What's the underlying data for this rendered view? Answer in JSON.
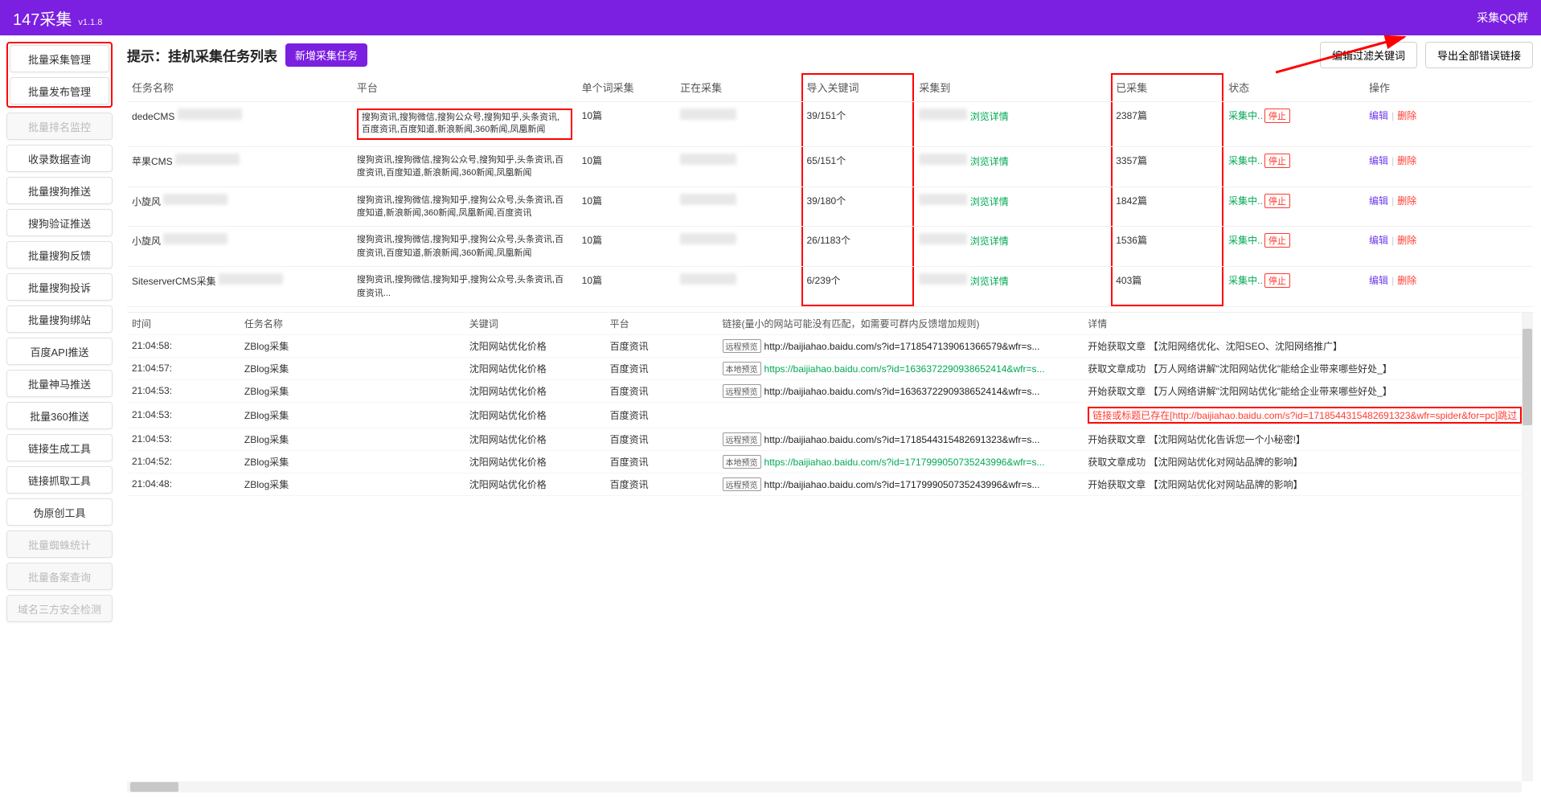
{
  "header": {
    "title": "147采集",
    "version": "v1.1.8",
    "right_link": "采集QQ群"
  },
  "sidebar": {
    "group_highlight": [
      "批量采集管理",
      "批量发布管理"
    ],
    "items": [
      {
        "label": "批量排名监控",
        "disabled": true
      },
      {
        "label": "收录数据查询",
        "disabled": false
      },
      {
        "label": "批量搜狗推送",
        "disabled": false
      },
      {
        "label": "搜狗验证推送",
        "disabled": false
      },
      {
        "label": "批量搜狗反馈",
        "disabled": false
      },
      {
        "label": "批量搜狗投诉",
        "disabled": false
      },
      {
        "label": "批量搜狗绑站",
        "disabled": false
      },
      {
        "label": "百度API推送",
        "disabled": false
      },
      {
        "label": "批量神马推送",
        "disabled": false
      },
      {
        "label": "批量360推送",
        "disabled": false
      },
      {
        "label": "链接生成工具",
        "disabled": false
      },
      {
        "label": "链接抓取工具",
        "disabled": false
      },
      {
        "label": "伪原创工具",
        "disabled": false
      },
      {
        "label": "批量蜘蛛统计",
        "disabled": true
      },
      {
        "label": "批量备案查询",
        "disabled": true
      },
      {
        "label": "域名三方安全检测",
        "disabled": true
      }
    ]
  },
  "titlebar": {
    "hint": "提示：挂机采集任务列表",
    "new_btn": "新增采集任务",
    "edit_filter": "编辑过滤关键词",
    "export_err": "导出全部错误链接"
  },
  "columns": {
    "task_name": "任务名称",
    "platform": "平台",
    "per_word": "单个词采集",
    "collecting": "正在采集",
    "imported_kw": "导入关键词",
    "collected_to": "采集到",
    "collected_count": "已采集",
    "status": "状态",
    "actions": "操作"
  },
  "status_labels": {
    "collecting": "采集中..",
    "stop": "停止"
  },
  "action_labels": {
    "edit": "编辑",
    "delete": "删除"
  },
  "detail_link": "浏览详情",
  "rows": [
    {
      "task": "dedeCMS",
      "platform": "搜狗资讯,搜狗微信,搜狗公众号,搜狗知乎,头条资讯,百度资讯,百度知道,新浪新闻,360新闻,凤凰新闻",
      "platform_hl": true,
      "per_word": "10篇",
      "imported_kw": "39/151个",
      "collected_count": "2387篇"
    },
    {
      "task": "苹果CMS",
      "platform": "搜狗资讯,搜狗微信,搜狗公众号,搜狗知乎,头条资讯,百度资讯,百度知道,新浪新闻,360新闻,凤凰新闻",
      "per_word": "10篇",
      "imported_kw": "65/151个",
      "collected_count": "3357篇"
    },
    {
      "task": "小旋风",
      "platform": "搜狗资讯,搜狗微信,搜狗知乎,搜狗公众号,头条资讯,百度知道,新浪新闻,360新闻,凤凰新闻,百度资讯",
      "per_word": "10篇",
      "imported_kw": "39/180个",
      "collected_count": "1842篇"
    },
    {
      "task": "小旋风",
      "platform": "搜狗资讯,搜狗微信,搜狗知乎,搜狗公众号,头条资讯,百度资讯,百度知道,新浪新闻,360新闻,凤凰新闻",
      "per_word": "10篇",
      "imported_kw": "26/1183个",
      "collected_count": "1536篇"
    },
    {
      "task": "SiteserverCMS采集",
      "platform": "搜狗资讯,搜狗微信,搜狗知乎,搜狗公众号,头条资讯,百度资讯...",
      "per_word": "10篇",
      "imported_kw": "6/239个",
      "collected_count": "403篇"
    }
  ],
  "log_columns": {
    "time": "时间",
    "task": "任务名称",
    "keyword": "关键词",
    "platform": "平台",
    "link": "链接(量小的网站可能没有匹配，如需要可群内反馈增加规则)",
    "detail": "详情"
  },
  "preview_tags": {
    "remote": "远程预览",
    "local": "本地预览"
  },
  "log_rows": [
    {
      "time": "21:04:58:",
      "task": "ZBlog采集",
      "keyword": "沈阳网站优化价格",
      "platform": "百度资讯",
      "tag": "remote",
      "url": "http://baijiahao.baidu.com/s?id=1718547139061366579&wfr=s...",
      "url_color": "black",
      "detail": "开始获取文章 【沈阳网络优化、沈阳SEO、沈阳网络推广】"
    },
    {
      "time": "21:04:57:",
      "task": "ZBlog采集",
      "keyword": "沈阳网站优化价格",
      "platform": "百度资讯",
      "tag": "local",
      "url": "https://baijiahao.baidu.com/s?id=1636372290938652414&wfr=s...",
      "url_color": "green",
      "detail": "获取文章成功 【万人网络讲解\"沈阳网站优化\"能给企业带来哪些好处_】"
    },
    {
      "time": "21:04:53:",
      "task": "ZBlog采集",
      "keyword": "沈阳网站优化价格",
      "platform": "百度资讯",
      "tag": "remote",
      "url": "http://baijiahao.baidu.com/s?id=1636372290938652414&wfr=s...",
      "url_color": "black",
      "detail": "开始获取文章 【万人网络讲解\"沈阳网站优化\"能给企业带来哪些好处_】"
    },
    {
      "time": "21:04:53:",
      "task": "ZBlog采集",
      "keyword": "沈阳网站优化价格",
      "platform": "百度资讯",
      "tag": "",
      "url": "",
      "url_color": "black",
      "detail_hl": "链接或标题已存在[http://baijiahao.baidu.com/s?id=1718544315482691323&wfr=spider&for=pc]跳过"
    },
    {
      "time": "21:04:53:",
      "task": "ZBlog采集",
      "keyword": "沈阳网站优化价格",
      "platform": "百度资讯",
      "tag": "remote",
      "url": "http://baijiahao.baidu.com/s?id=1718544315482691323&wfr=s...",
      "url_color": "black",
      "detail": "开始获取文章 【沈阳网站优化告诉您一个小秘密!】"
    },
    {
      "time": "21:04:52:",
      "task": "ZBlog采集",
      "keyword": "沈阳网站优化价格",
      "platform": "百度资讯",
      "tag": "local",
      "url": "https://baijiahao.baidu.com/s?id=1717999050735243996&wfr=s...",
      "url_color": "green",
      "detail": "获取文章成功 【沈阳网站优化对网站品牌的影响】"
    },
    {
      "time": "21:04:48:",
      "task": "ZBlog采集",
      "keyword": "沈阳网站优化价格",
      "platform": "百度资讯",
      "tag": "remote",
      "url": "http://baijiahao.baidu.com/s?id=1717999050735243996&wfr=s...",
      "url_color": "black",
      "detail": "开始获取文章 【沈阳网站优化对网站品牌的影响】"
    }
  ],
  "colors": {
    "primary": "#7b1fe0",
    "green": "#00a854",
    "red": "#ff3b30",
    "purple": "#6f3ce8",
    "annotation_red": "#ff0000"
  }
}
